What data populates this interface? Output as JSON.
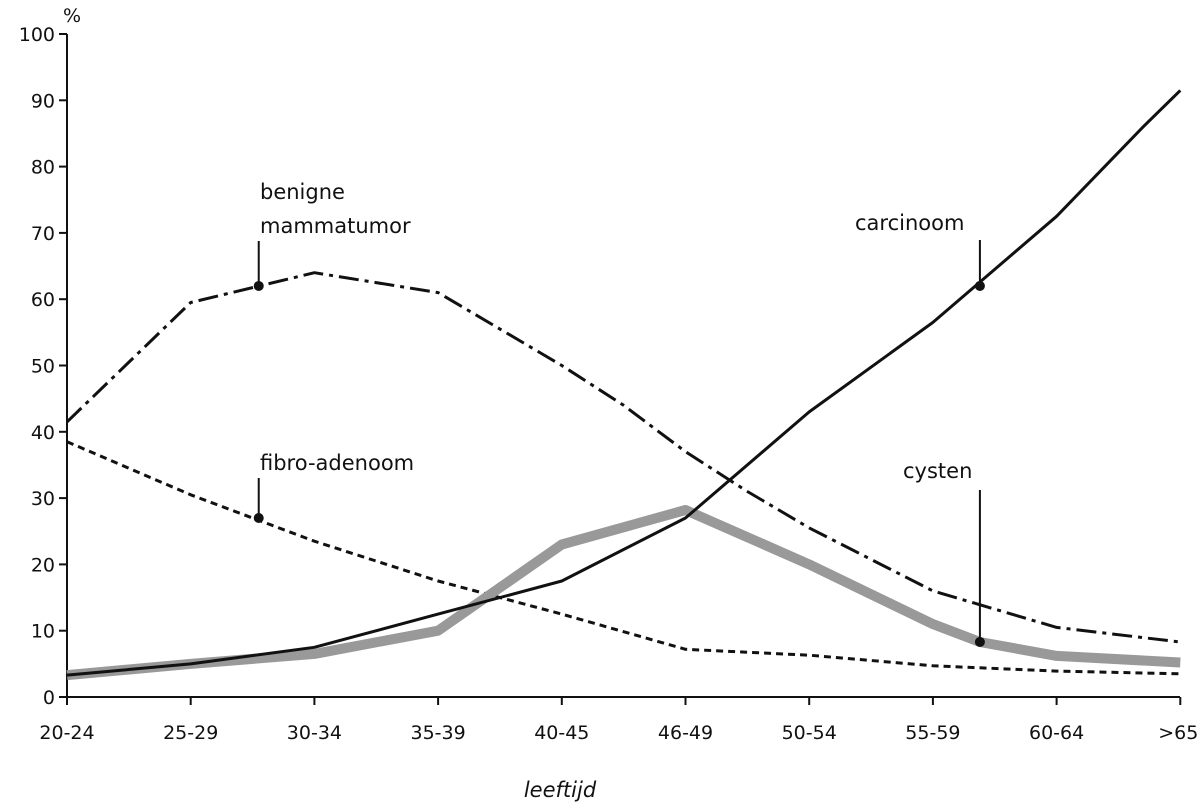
{
  "chart_data": {
    "type": "line",
    "title": "",
    "xlabel": "leeftijd",
    "ylabel": "%",
    "categories": [
      "20-24",
      "25-29",
      "30-34",
      "35-39",
      "40-45",
      "46-49",
      "50-54",
      "55-59",
      "60-64",
      ">65"
    ],
    "ylim": [
      0,
      100
    ],
    "yticks": [
      0,
      10,
      20,
      30,
      40,
      50,
      60,
      70,
      80,
      90,
      100
    ],
    "grid": false,
    "series": [
      {
        "name": "benigne mammatumor",
        "style": "dashdot",
        "color": "#111111",
        "x": [
          0,
          1,
          2,
          3,
          4,
          4.5,
          5,
          5.5,
          6,
          7,
          8,
          9
        ],
        "values": [
          41.5,
          59.5,
          64,
          61,
          50,
          44,
          37,
          31,
          25.5,
          16,
          10.5,
          8.3
        ]
      },
      {
        "name": "fibro-adenoom",
        "style": "dotted",
        "color": "#111111",
        "x": [
          0,
          1,
          2,
          3,
          4,
          5,
          6,
          7,
          8,
          9
        ],
        "values": [
          38.5,
          30.5,
          23.5,
          17.5,
          12.5,
          7.2,
          6.3,
          4.7,
          3.9,
          3.5
        ]
      },
      {
        "name": "carcinoom",
        "style": "solid",
        "color": "#111111",
        "x": [
          0,
          1,
          2,
          3,
          4,
          5,
          6,
          7,
          8,
          8.7,
          9
        ],
        "values": [
          3.3,
          5,
          7.5,
          12.5,
          17.5,
          27,
          43,
          56.5,
          72.5,
          86,
          91.5
        ]
      },
      {
        "name": "cysten",
        "style": "thick",
        "color": "#999999",
        "x": [
          0,
          1,
          2,
          3,
          4,
          5,
          6,
          7,
          7.38,
          8,
          9
        ],
        "values": [
          3.3,
          5,
          6.5,
          10,
          23,
          28.2,
          20,
          11,
          8.3,
          6.2,
          5.2
        ]
      }
    ],
    "annotations": [
      {
        "text": [
          "benigne",
          "mammatumor"
        ],
        "series": "benigne mammatumor",
        "point": [
          1.55,
          62
        ]
      },
      {
        "text": [
          "carcinoom"
        ],
        "series": "carcinoom",
        "point": [
          7.38,
          62
        ]
      },
      {
        "text": [
          "fibro-adenoom"
        ],
        "series": "fibro-adenoom",
        "point": [
          1.55,
          27
        ]
      },
      {
        "text": [
          "cysten"
        ],
        "series": "cysten",
        "point": [
          7.38,
          8.3
        ]
      }
    ]
  }
}
